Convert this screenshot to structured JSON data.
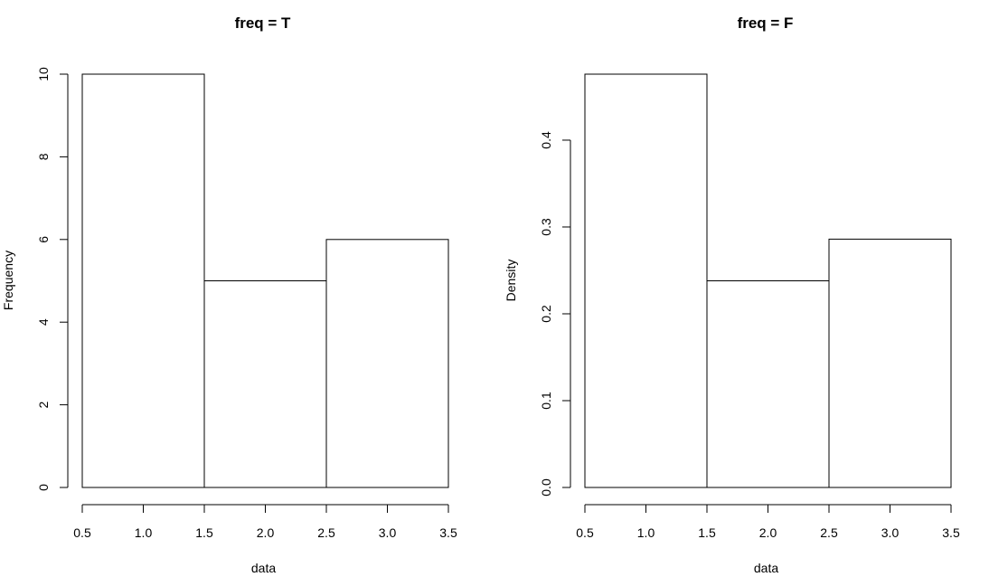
{
  "chart_data": [
    {
      "type": "bar",
      "title": "freq = T",
      "xlabel": "data",
      "ylabel": "Frequency",
      "bins": [
        [
          0.5,
          1.5
        ],
        [
          1.5,
          2.5
        ],
        [
          2.5,
          3.5
        ]
      ],
      "values": [
        10,
        5,
        6
      ],
      "xlim": [
        0.5,
        3.5
      ],
      "ylim": [
        0,
        10
      ],
      "xticks": [
        "0.5",
        "1.0",
        "1.5",
        "2.0",
        "2.5",
        "3.0",
        "3.5"
      ],
      "yticks": [
        "0",
        "2",
        "4",
        "6",
        "8",
        "10"
      ],
      "grid": false,
      "bar_fill": "#ffffff",
      "bar_stroke": "#000000"
    },
    {
      "type": "bar",
      "title": "freq = F",
      "xlabel": "data",
      "ylabel": "Density",
      "bins": [
        [
          0.5,
          1.5
        ],
        [
          1.5,
          2.5
        ],
        [
          2.5,
          3.5
        ]
      ],
      "values": [
        0.476,
        0.238,
        0.286
      ],
      "xlim": [
        0.5,
        3.5
      ],
      "ylim": [
        0,
        0.4
      ],
      "xticks": [
        "0.5",
        "1.0",
        "1.5",
        "2.0",
        "2.5",
        "3.0",
        "3.5"
      ],
      "yticks": [
        "0.0",
        "0.1",
        "0.2",
        "0.3",
        "0.4"
      ],
      "grid": false,
      "bar_fill": "#ffffff",
      "bar_stroke": "#000000"
    }
  ]
}
